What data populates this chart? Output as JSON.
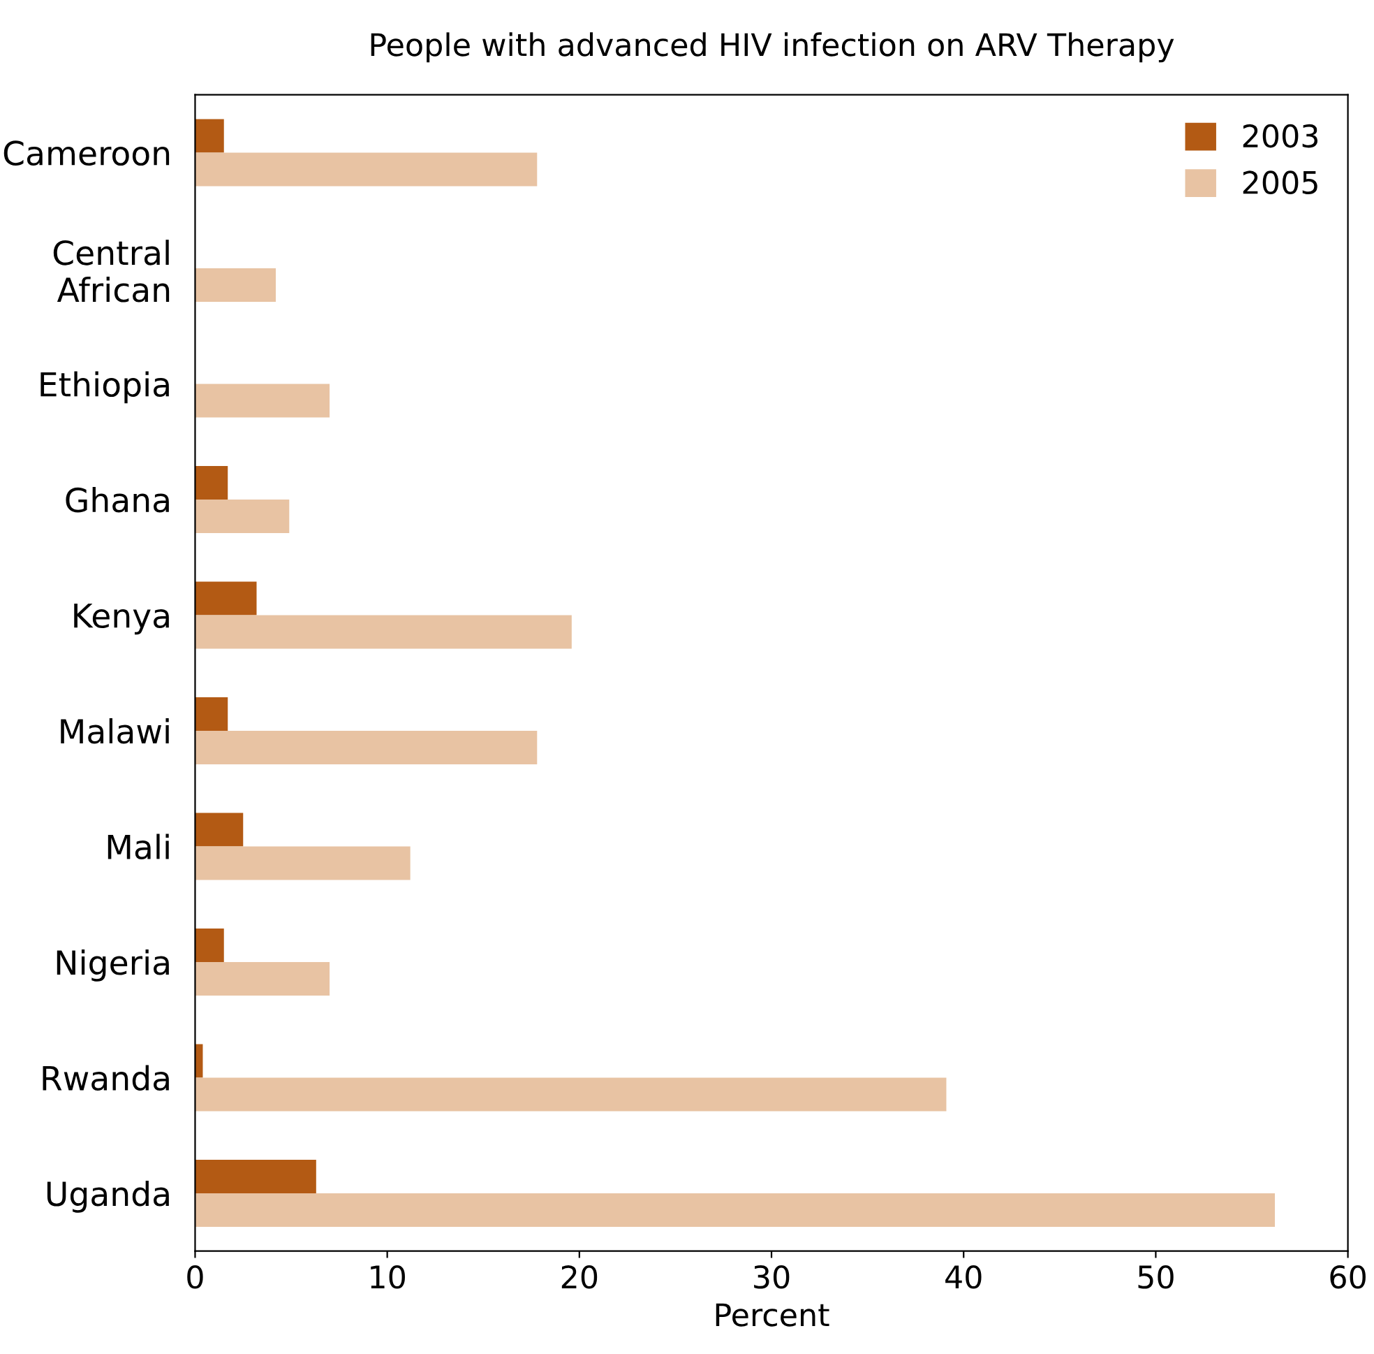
{
  "chart_data": {
    "type": "bar",
    "orientation": "horizontal",
    "title": "People with advanced HIV infection on ARV Therapy",
    "xlabel": "Percent",
    "categories": [
      "Cameroon",
      "Central\nAfrican",
      "Ethiopia",
      "Ghana",
      "Kenya",
      "Malawi",
      "Mali",
      "Nigeria",
      "Rwanda",
      "Uganda"
    ],
    "series": [
      {
        "name": "2003",
        "color": "#b35a14",
        "values": [
          1.5,
          null,
          null,
          1.7,
          3.2,
          1.7,
          2.5,
          1.5,
          0.4,
          6.3
        ]
      },
      {
        "name": "2005",
        "color": "#e8c3a3",
        "values": [
          17.8,
          4.2,
          7.0,
          4.9,
          19.6,
          17.8,
          11.2,
          7.0,
          39.1,
          56.2
        ]
      }
    ],
    "xlim": [
      0,
      60
    ],
    "xticks": [
      0,
      10,
      20,
      30,
      40,
      50,
      60
    ],
    "grid": false,
    "legend": "top right"
  }
}
